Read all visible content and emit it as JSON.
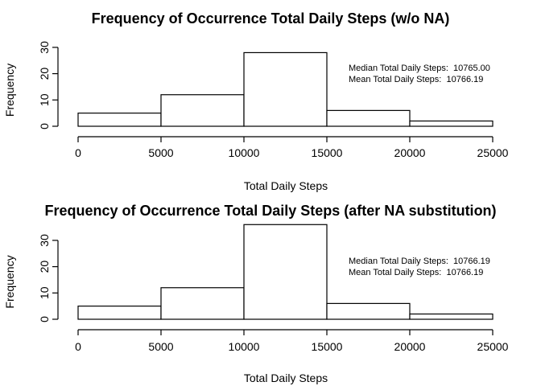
{
  "chart_data": [
    {
      "type": "bar",
      "title": "Frequency of Occurrence Total Daily Steps (w/o NA)",
      "xlabel": "Total Daily Steps",
      "ylabel": "Frequency",
      "bins": [
        [
          0,
          5000
        ],
        [
          5000,
          10000
        ],
        [
          10000,
          15000
        ],
        [
          15000,
          20000
        ],
        [
          20000,
          25000
        ]
      ],
      "values": [
        5,
        12,
        28,
        6,
        2
      ],
      "xlim": [
        0,
        25000
      ],
      "ylim": [
        0,
        35
      ],
      "xticks": [
        0,
        5000,
        10000,
        15000,
        20000,
        25000
      ],
      "yticks": [
        0,
        10,
        20,
        30
      ],
      "annotations": [
        "Median Total Daily Steps:  10765.00",
        "Mean Total Daily Steps:  10766.19"
      ]
    },
    {
      "type": "bar",
      "title": "Frequency of Occurrence Total Daily Steps (after NA substitution)",
      "xlabel": "Total Daily Steps",
      "ylabel": "Frequency",
      "bins": [
        [
          0,
          5000
        ],
        [
          5000,
          10000
        ],
        [
          10000,
          15000
        ],
        [
          15000,
          20000
        ],
        [
          20000,
          25000
        ]
      ],
      "values": [
        5,
        12,
        36,
        6,
        2
      ],
      "xlim": [
        0,
        25000
      ],
      "ylim": [
        0,
        36
      ],
      "xticks": [
        0,
        5000,
        10000,
        15000,
        20000,
        25000
      ],
      "yticks": [
        0,
        10,
        20,
        30
      ],
      "annotations": [
        "Median Total Daily Steps:  10766.19",
        "Mean Total Daily Steps:  10766.19"
      ]
    }
  ]
}
